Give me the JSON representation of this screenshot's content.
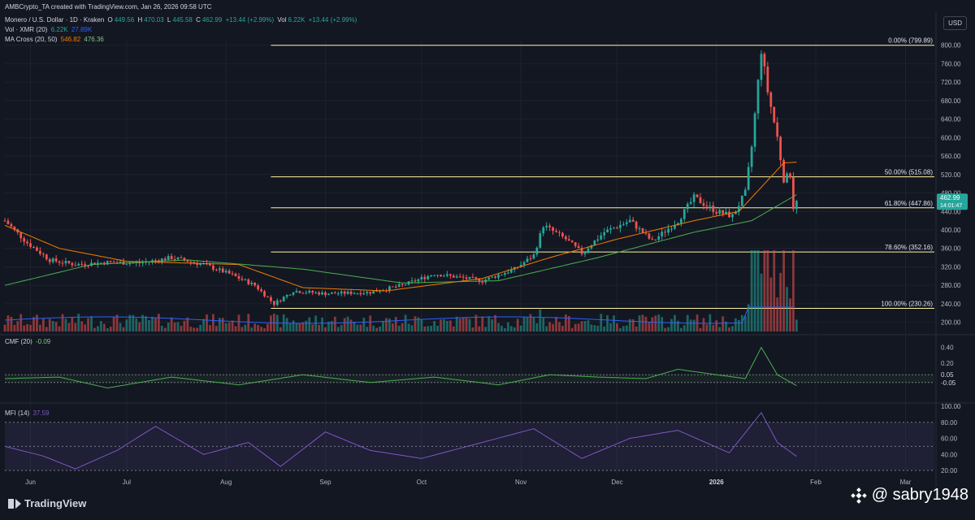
{
  "header": {
    "created": "AMBCrypto_TA created with TradingView.com, Jan 26, 2026 09:58 UTC",
    "symbol": "Monero / U.S. Dollar · 1D · Kraken",
    "o_label": "O",
    "o": "449.56",
    "h_label": "H",
    "h": "470.03",
    "l_label": "L",
    "l": "445.58",
    "c_label": "C",
    "c": "462.99",
    "change": "+13.44 (+2.99%)",
    "vol_label": "Vol",
    "vol": "6.22K",
    "change2": "+13.44 (+2.99%)",
    "vol_ind": "Vol · XMR (20)",
    "vol_a": "6.22K",
    "vol_b": "27.89K",
    "ma_ind": "MA Cross (20, 50)",
    "ma_a": "546.82",
    "ma_b": "476.36",
    "cmf_ind": "CMF (20)",
    "cmf_val": "-0.09",
    "mfi_ind": "MFI (14)",
    "mfi_val": "37.59",
    "currency": "USD"
  },
  "footer": {
    "brand": "TradingView",
    "watermark": "@ sabry1948"
  },
  "colors": {
    "up": "#26a69a",
    "down": "#ef5350",
    "fib": "#fff59d",
    "ma_fast": "#f57c00",
    "ma_slow": "#4caf50",
    "vol_ma": "#2962ff",
    "cmf": "#4caf50",
    "mfi": "#7e57c2",
    "grid": "#1e222d",
    "axis_text": "#b2b5be"
  },
  "chart_data": {
    "type": "candlestick",
    "title": "Monero / U.S. Dollar · 1D · Kraken",
    "currency": "USD",
    "x_range": [
      "2025-05-24",
      "2026-03-10"
    ],
    "price_ylim": [
      180,
      810
    ],
    "price_ticks": [
      "800.00",
      "760.00",
      "720.00",
      "680.00",
      "640.00",
      "600.00",
      "560.00",
      "520.00",
      "480.00",
      "440.00",
      "400.00",
      "360.00",
      "320.00",
      "280.00",
      "240.00",
      "200.00"
    ],
    "month_labels": [
      {
        "date": "2025-06-01",
        "label": "Jun"
      },
      {
        "date": "2025-07-01",
        "label": "Jul"
      },
      {
        "date": "2025-08-01",
        "label": "Aug"
      },
      {
        "date": "2025-09-01",
        "label": "Sep"
      },
      {
        "date": "2025-10-01",
        "label": "Oct"
      },
      {
        "date": "2025-11-01",
        "label": "Nov"
      },
      {
        "date": "2025-12-01",
        "label": "Dec"
      },
      {
        "date": "2026-01-01",
        "label": "2026"
      },
      {
        "date": "2026-02-01",
        "label": "Feb"
      },
      {
        "date": "2026-03-01",
        "label": "Mar"
      }
    ],
    "last_price": "462.99",
    "countdown": "14:01:47",
    "close_anchors": [
      [
        "2025-05-24",
        420
      ],
      [
        "2025-05-31",
        372
      ],
      [
        "2025-06-07",
        335
      ],
      [
        "2025-06-15",
        325
      ],
      [
        "2025-06-25",
        330
      ],
      [
        "2025-07-05",
        328
      ],
      [
        "2025-07-15",
        340
      ],
      [
        "2025-07-25",
        325
      ],
      [
        "2025-08-02",
        305
      ],
      [
        "2025-08-10",
        280
      ],
      [
        "2025-08-16",
        240
      ],
      [
        "2025-08-22",
        268
      ],
      [
        "2025-09-01",
        262
      ],
      [
        "2025-09-15",
        265
      ],
      [
        "2025-09-25",
        280
      ],
      [
        "2025-10-05",
        305
      ],
      [
        "2025-10-10",
        300
      ],
      [
        "2025-10-20",
        290
      ],
      [
        "2025-10-30",
        315
      ],
      [
        "2025-11-05",
        345
      ],
      [
        "2025-11-08",
        410
      ],
      [
        "2025-11-15",
        380
      ],
      [
        "2025-11-20",
        350
      ],
      [
        "2025-11-27",
        395
      ],
      [
        "2025-12-05",
        420
      ],
      [
        "2025-12-12",
        375
      ],
      [
        "2025-12-20",
        420
      ],
      [
        "2025-12-25",
        470
      ],
      [
        "2026-01-01",
        440
      ],
      [
        "2026-01-06",
        430
      ],
      [
        "2026-01-10",
        480
      ],
      [
        "2026-01-12",
        580
      ],
      [
        "2026-01-14",
        720
      ],
      [
        "2026-01-15",
        790
      ],
      [
        "2026-01-17",
        700
      ],
      [
        "2026-01-20",
        600
      ],
      [
        "2026-01-22",
        510
      ],
      [
        "2026-01-24",
        520
      ],
      [
        "2026-01-25",
        449.56
      ],
      [
        "2026-01-26",
        462.99
      ]
    ],
    "ma_fast_anchors": [
      [
        "2025-05-24",
        410
      ],
      [
        "2025-06-10",
        360
      ],
      [
        "2025-07-01",
        332
      ],
      [
        "2025-08-05",
        325
      ],
      [
        "2025-08-25",
        275
      ],
      [
        "2025-09-20",
        268
      ],
      [
        "2025-10-20",
        295
      ],
      [
        "2025-11-10",
        340
      ],
      [
        "2025-12-01",
        380
      ],
      [
        "2025-12-25",
        420
      ],
      [
        "2026-01-08",
        440
      ],
      [
        "2026-01-16",
        500
      ],
      [
        "2026-01-22",
        545
      ],
      [
        "2026-01-26",
        546.82
      ]
    ],
    "ma_slow_anchors": [
      [
        "2025-05-24",
        280
      ],
      [
        "2025-06-20",
        325
      ],
      [
        "2025-07-20",
        335
      ],
      [
        "2025-08-25",
        315
      ],
      [
        "2025-09-25",
        285
      ],
      [
        "2025-10-25",
        290
      ],
      [
        "2025-11-25",
        340
      ],
      [
        "2025-12-25",
        395
      ],
      [
        "2026-01-12",
        420
      ],
      [
        "2026-01-26",
        476.36
      ]
    ],
    "fib_levels": [
      {
        "label": "0.00% (799.89)",
        "value": 799.89
      },
      {
        "label": "50.00% (515.08)",
        "value": 515.08
      },
      {
        "label": "61.80% (447.86)",
        "value": 447.86
      },
      {
        "label": "78.60% (352.16)",
        "value": 352.16
      },
      {
        "label": "100.00% (230.26)",
        "value": 230.26
      }
    ],
    "fib_start_date": "2025-08-15",
    "cmf": {
      "ylim": [
        -0.25,
        0.5
      ],
      "ticks": [
        "0.40",
        "0.20"
      ],
      "bands": [
        "0.05",
        "-0.05"
      ],
      "anchors": [
        [
          "2025-05-24",
          0.0
        ],
        [
          "2025-06-10",
          0.02
        ],
        [
          "2025-06-25",
          -0.12
        ],
        [
          "2025-07-15",
          0.02
        ],
        [
          "2025-08-05",
          -0.08
        ],
        [
          "2025-08-25",
          0.05
        ],
        [
          "2025-09-15",
          -0.05
        ],
        [
          "2025-10-05",
          0.02
        ],
        [
          "2025-10-25",
          -0.08
        ],
        [
          "2025-11-10",
          0.05
        ],
        [
          "2025-11-25",
          0.02
        ],
        [
          "2025-12-10",
          0.0
        ],
        [
          "2025-12-20",
          0.12
        ],
        [
          "2026-01-01",
          0.05
        ],
        [
          "2026-01-10",
          0.0
        ],
        [
          "2026-01-15",
          0.4
        ],
        [
          "2026-01-20",
          0.05
        ],
        [
          "2026-01-26",
          -0.09
        ]
      ]
    },
    "mfi": {
      "ylim": [
        15,
        100
      ],
      "ticks": [
        "100.00",
        "80.00",
        "60.00",
        "40.00",
        "20.00"
      ],
      "anchors": [
        [
          "2025-05-24",
          50
        ],
        [
          "2025-06-05",
          38
        ],
        [
          "2025-06-15",
          22
        ],
        [
          "2025-06-28",
          45
        ],
        [
          "2025-07-10",
          75
        ],
        [
          "2025-07-25",
          40
        ],
        [
          "2025-08-08",
          55
        ],
        [
          "2025-08-18",
          25
        ],
        [
          "2025-09-01",
          68
        ],
        [
          "2025-09-15",
          45
        ],
        [
          "2025-10-01",
          35
        ],
        [
          "2025-10-20",
          55
        ],
        [
          "2025-11-05",
          72
        ],
        [
          "2025-11-20",
          35
        ],
        [
          "2025-12-05",
          60
        ],
        [
          "2025-12-20",
          70
        ],
        [
          "2026-01-05",
          42
        ],
        [
          "2026-01-15",
          92
        ],
        [
          "2026-01-20",
          55
        ],
        [
          "2026-01-26",
          37.59
        ]
      ]
    }
  }
}
